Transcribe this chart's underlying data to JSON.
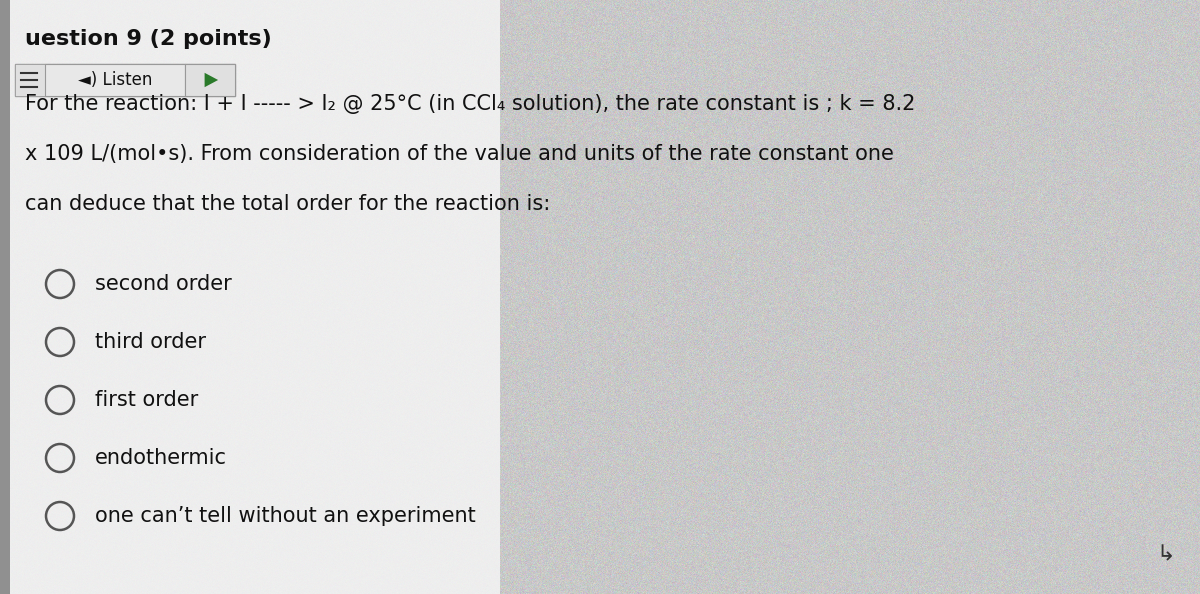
{
  "bg_texture_color": "#c8c8c8",
  "content_bg_color": "#f0f0f0",
  "left_sidebar_color": "#909090",
  "title": "uestion 9 (2 points)",
  "title_fontsize": 16,
  "question_lines": [
    "For the reaction: I + I ----- > I₂ @ 25°C (in CCl₄ solution), the rate constant is ; k = 8.2",
    "x 109 L/(mol•s). From consideration of the value and units of the rate constant one",
    "can deduce that the total order for the reaction is:"
  ],
  "choices": [
    "second order",
    "third order",
    "first order",
    "endothermic",
    "one can’t tell without an experiment"
  ],
  "question_fontsize": 15,
  "choice_fontsize": 15,
  "text_color": "#111111",
  "listen_bg": "#e8e8e8",
  "listen_border": "#999999",
  "play_arrow_color": "#2a7a2a",
  "radio_color": "#555555",
  "radio_linewidth": 1.8,
  "radio_size": 0.016
}
